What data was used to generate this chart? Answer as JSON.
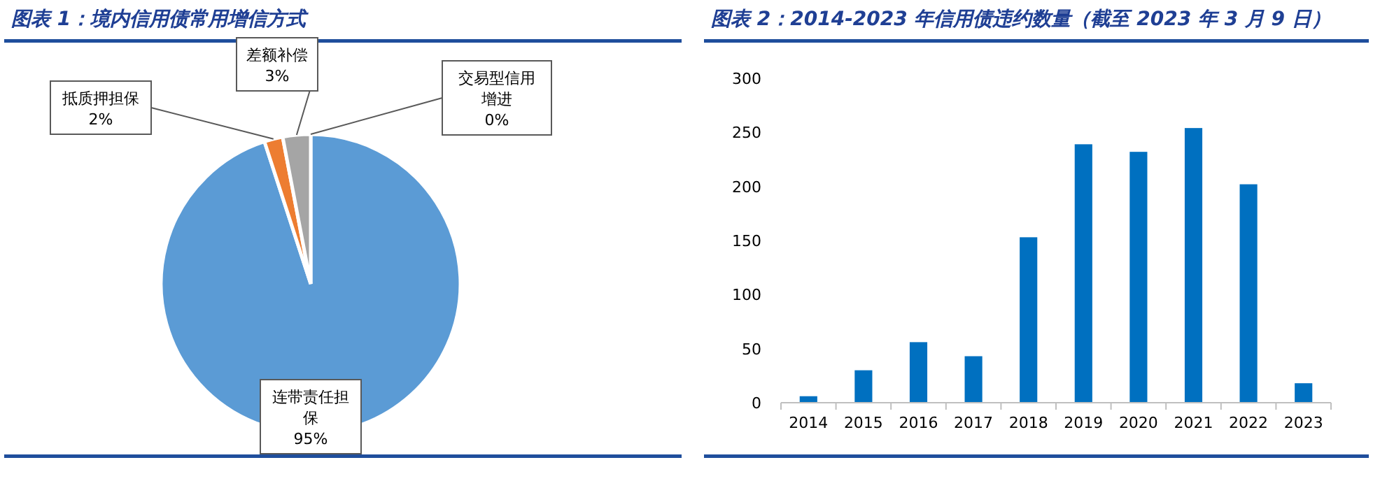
{
  "chart_data": [
    {
      "type": "pie",
      "title": "图表 1：境内信用债常用增信方式",
      "categories": [
        "连带责任担保",
        "抵质押担保",
        "差额补偿",
        "交易型信用增进"
      ],
      "values": [
        95,
        2,
        3,
        0
      ],
      "colors": [
        "#5b9bd5",
        "#ed7d31",
        "#a5a5a5",
        "#ffc000"
      ],
      "value_labels": [
        "95%",
        "2%",
        "3%",
        "0%"
      ]
    },
    {
      "type": "bar",
      "title": "图表 2：2014-2023 年信用债违约数量（截至 2023 年 3 月 9 日）",
      "categories": [
        "2014",
        "2015",
        "2016",
        "2017",
        "2018",
        "2019",
        "2020",
        "2021",
        "2022",
        "2023"
      ],
      "values": [
        6,
        30,
        56,
        43,
        153,
        239,
        232,
        254,
        202,
        18
      ],
      "color": "#0070c0",
      "ylim": [
        0,
        300
      ],
      "yticks": [
        0,
        50,
        100,
        150,
        200,
        250,
        300
      ],
      "grid": false
    }
  ]
}
